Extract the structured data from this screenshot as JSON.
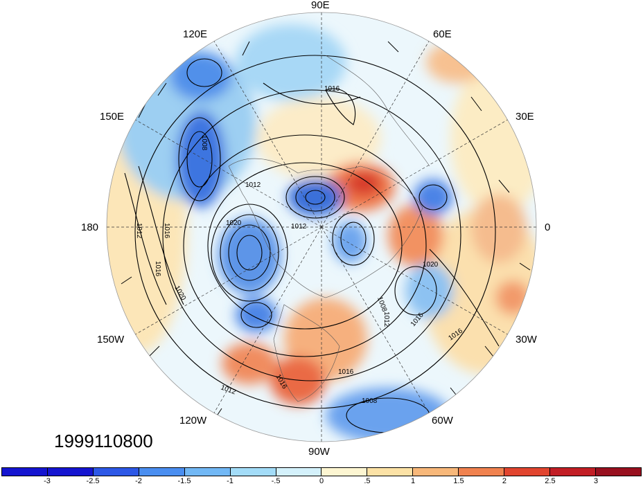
{
  "date_label": "1999110800",
  "longitude_labels": {
    "lon_90e": "90E",
    "lon_60e": "60E",
    "lon_120e": "120E",
    "lon_150e": "150E",
    "lon_30e": "30E",
    "lon_180": "180",
    "lon_0": "0",
    "lon_150w": "150W",
    "lon_30w": "30W",
    "lon_120w": "120W",
    "lon_60w": "60W",
    "lon_90w": "90W"
  },
  "contour_labels": [
    "1016",
    "1008",
    "1012",
    "1016",
    "1020",
    "1012",
    "1012",
    "1016",
    "1020",
    "1020",
    "1008",
    "1016",
    "1016",
    "1012",
    "1016",
    "1016",
    "1012",
    "1008"
  ],
  "colorbar": {
    "colors": [
      "#1515d0",
      "#2d58e6",
      "#4a8ef0",
      "#72b8f5",
      "#a3dcf8",
      "#d4f1fb",
      "#fdf6d2",
      "#fce2a6",
      "#f8b87a",
      "#f0824f",
      "#e1452f",
      "#c21e25",
      "#98101f"
    ],
    "labels": [
      "-3",
      "-2.5",
      "-2",
      "-1.5",
      "-1",
      "-.5",
      "0",
      ".5",
      "1",
      "1.5",
      "2",
      "2.5",
      "3"
    ]
  }
}
